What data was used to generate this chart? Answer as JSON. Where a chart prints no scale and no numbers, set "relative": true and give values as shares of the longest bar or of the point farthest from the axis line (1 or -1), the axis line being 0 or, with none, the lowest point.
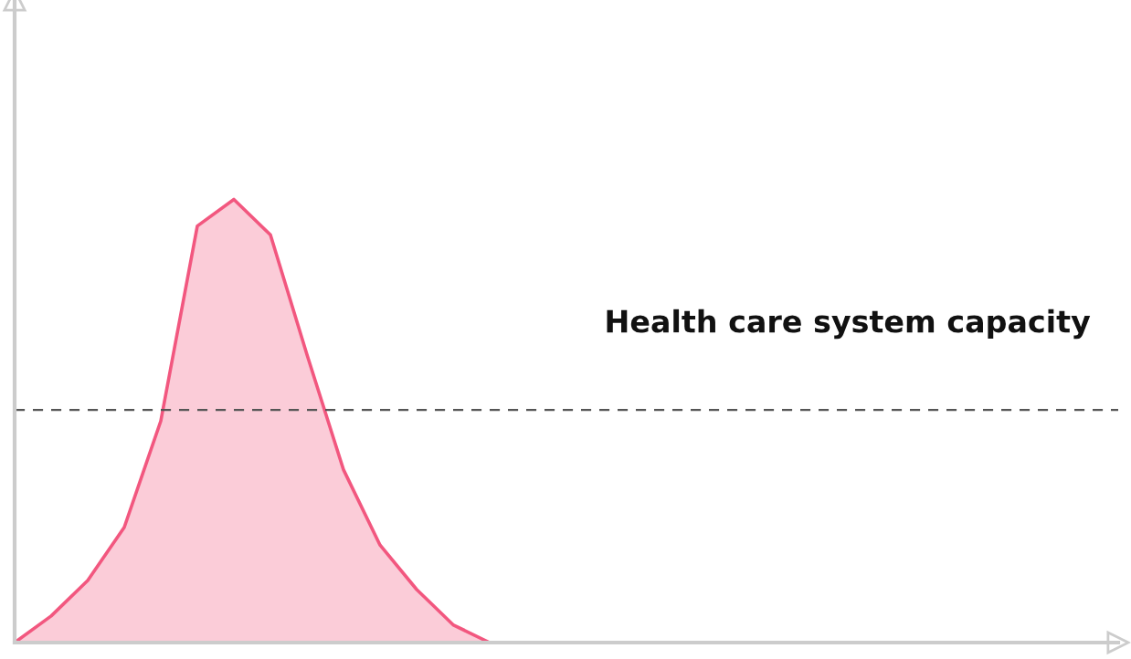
{
  "chart_data": {
    "type": "area",
    "relative": true,
    "categories": [
      null,
      null,
      null,
      null,
      null,
      null,
      null,
      null,
      null,
      null,
      null,
      null,
      null,
      null,
      null,
      null,
      null,
      null,
      null,
      null,
      null,
      null,
      null,
      null,
      null,
      null,
      null,
      null,
      null,
      null,
      null
    ],
    "series": [
      {
        "color": "#f2577f",
        "values": [
          0,
          0.06,
          0.14,
          0.26,
          0.5,
          0.94,
          1.0,
          0.92,
          0.65,
          0.39,
          0.22,
          0.12,
          0.04,
          0,
          null,
          null,
          null,
          null,
          null,
          null,
          null,
          null,
          null,
          null,
          null,
          null,
          null,
          null,
          null,
          null,
          null
        ]
      }
    ],
    "ref_lines": [
      {
        "axis": "y",
        "value": 0.525,
        "label": "Health care system capacity",
        "color": "#555555",
        "line_style": "dashed"
      }
    ],
    "grid": false,
    "legend": false
  }
}
